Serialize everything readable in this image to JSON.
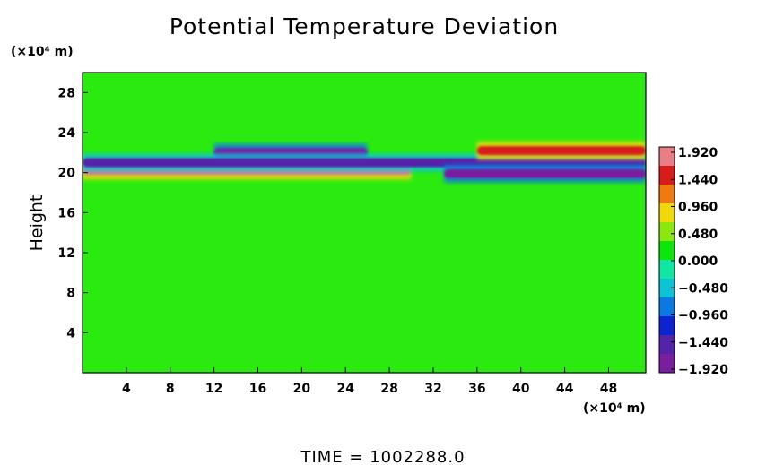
{
  "chart_data": {
    "type": "heatmap",
    "title": "Potential Temperature Deviation",
    "ylabel": "Height",
    "yunit_label": "(×10⁴ m)",
    "xunit_label": "(×10⁴ m)",
    "xlabel": "",
    "xlim": [
      0,
      51.4
    ],
    "ylim": [
      0,
      30
    ],
    "xticks": [
      4,
      8,
      12,
      16,
      20,
      24,
      28,
      32,
      36,
      40,
      44,
      48
    ],
    "yticks": [
      4,
      8,
      12,
      16,
      20,
      24,
      28
    ],
    "background_value": 0.0,
    "colorbar": {
      "levels": [
        1.92,
        1.44,
        0.96,
        0.48,
        0.0,
        -0.48,
        -0.96,
        -1.44,
        -1.92
      ],
      "labels": [
        "1.920",
        "1.440",
        "0.960",
        "0.480",
        "0.000",
        "−0.480",
        "−0.960",
        "−1.440",
        "−1.920"
      ],
      "colors": [
        "#e97f86",
        "#d81c1c",
        "#ee7a10",
        "#f1d80b",
        "#8ce610",
        "#0ce60a",
        "#12e6a4",
        "#0fc3d6",
        "#0a7ae2",
        "#0c24d0",
        "#5424a8",
        "#7a1ea0"
      ]
    },
    "features": [
      {
        "name": "warm band lower",
        "x": [
          0,
          30
        ],
        "y": 20.2,
        "value": 1.6
      },
      {
        "name": "cold band upper",
        "x": [
          12,
          26
        ],
        "y": 22.0,
        "value": -1.7
      },
      {
        "name": "cold band",
        "x": [
          0,
          51.4
        ],
        "y": 21.0,
        "value": -1.3
      },
      {
        "name": "warm band upper right",
        "x": [
          36,
          51.4
        ],
        "y": 22.2,
        "value": 1.5
      },
      {
        "name": "cold band lower right",
        "x": [
          33,
          51.4
        ],
        "y": 19.9,
        "value": -1.9
      }
    ],
    "annotation": "TIME  =  1002288.0"
  }
}
